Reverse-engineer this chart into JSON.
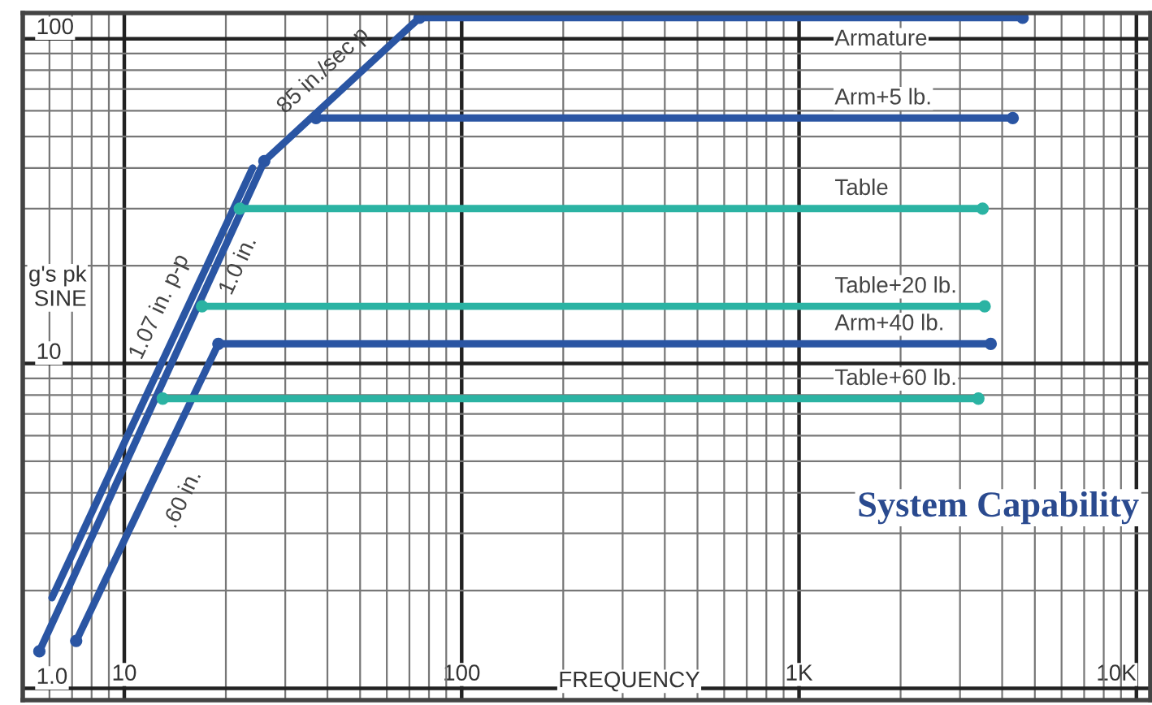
{
  "chart_data": {
    "type": "line",
    "title": "System Capability",
    "xlabel": "FREQUENCY",
    "ylabel": "g's pk\nSINE",
    "log": "xy",
    "xlim": [
      5,
      11000
    ],
    "ylim": [
      0.92,
      120
    ],
    "xticks": [
      10,
      100,
      {
        "value": 1000,
        "label": "1K"
      },
      {
        "value": 10000,
        "label": "10K"
      }
    ],
    "yticks": [
      {
        "value": 1,
        "label": "1.0"
      },
      10,
      100
    ],
    "grid": true,
    "annotations": [
      {
        "text": "85 in./sec p",
        "x": 44,
        "y": 70
      },
      {
        "text": "1.0 in.",
        "x": 19,
        "y": 22
      },
      {
        "text": ".60 in.",
        "x": 13,
        "y": 4.2
      }
    ],
    "series": [
      {
        "name": "1.07 in. p-p",
        "color": "#2a55a3",
        "x": [
          6.1,
          24
        ],
        "values": [
          1.9,
          40
        ]
      },
      {
        "name": "Armature",
        "color": "#2a55a3",
        "x": [
          5.6,
          26,
          75,
          4600
        ],
        "values": [
          1.3,
          42,
          116,
          116
        ],
        "marker": "circle"
      },
      {
        "name": "Arm+5 lb.",
        "color": "#2a55a3",
        "x": [
          37,
          4300
        ],
        "values": [
          57,
          57
        ],
        "marker": "circle"
      },
      {
        "name": "Table",
        "color": "#2bb3a3",
        "x": [
          22,
          3500
        ],
        "values": [
          30,
          30
        ],
        "marker": "circle"
      },
      {
        "name": "Table+20 lb.",
        "color": "#2bb3a3",
        "x": [
          17,
          3550
        ],
        "values": [
          15,
          15
        ],
        "marker": "circle"
      },
      {
        "name": "Arm+40 lb.",
        "color": "#2a55a3",
        "x": [
          7.2,
          19,
          3700
        ],
        "values": [
          1.4,
          11.5,
          11.5
        ],
        "marker": "circle"
      },
      {
        "name": "Table+60 lb.",
        "color": "#2bb3a3",
        "x": [
          13,
          3400
        ],
        "values": [
          7.8,
          7.8
        ],
        "marker": "circle"
      }
    ]
  }
}
